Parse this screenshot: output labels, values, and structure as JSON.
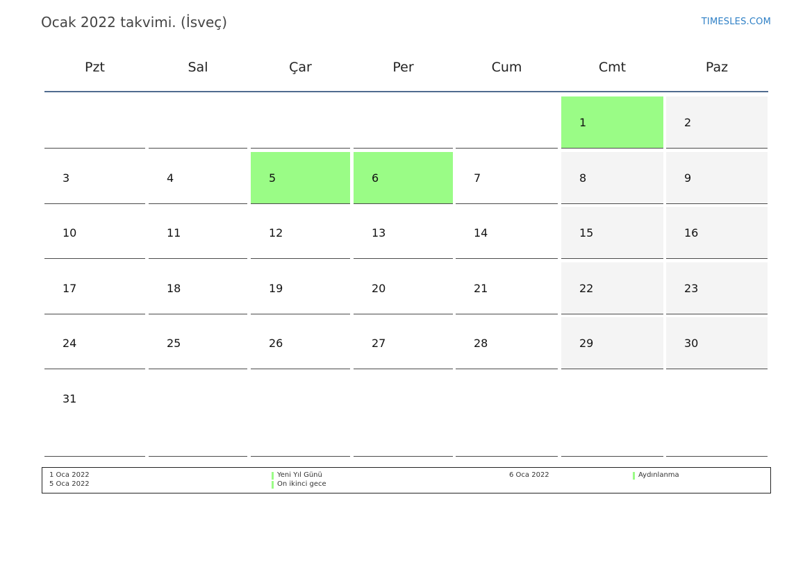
{
  "header": {
    "title": "Ocak 2022 takvimi. (İsveç)",
    "site": "TIMESLES.COM"
  },
  "weekdays": [
    "Pzt",
    "Sal",
    "Çar",
    "Per",
    "Cum",
    "Cmt",
    "Paz"
  ],
  "weeks": [
    [
      "",
      "",
      "",
      "",
      "",
      "1",
      "2"
    ],
    [
      "3",
      "4",
      "5",
      "6",
      "7",
      "8",
      "9"
    ],
    [
      "10",
      "11",
      "12",
      "13",
      "14",
      "15",
      "16"
    ],
    [
      "17",
      "18",
      "19",
      "20",
      "21",
      "22",
      "23"
    ],
    [
      "24",
      "25",
      "26",
      "27",
      "28",
      "29",
      "30"
    ],
    [
      "31",
      "",
      "",
      "",
      "",
      "",
      ""
    ]
  ],
  "holiday_days": [
    "1",
    "5",
    "6"
  ],
  "legend": {
    "left_dates": [
      "1 Oca 2022",
      "5 Oca 2022"
    ],
    "left_names": [
      "Yeni Yıl Günü",
      "On ikinci gece"
    ],
    "right_dates": [
      "6 Oca 2022"
    ],
    "right_names": [
      "Aydınlanma"
    ]
  },
  "colors": {
    "holiday": "#9afc86",
    "weekend": "#f4f4f4",
    "header_rule": "#4f6b8f",
    "link": "#2f80c6"
  }
}
